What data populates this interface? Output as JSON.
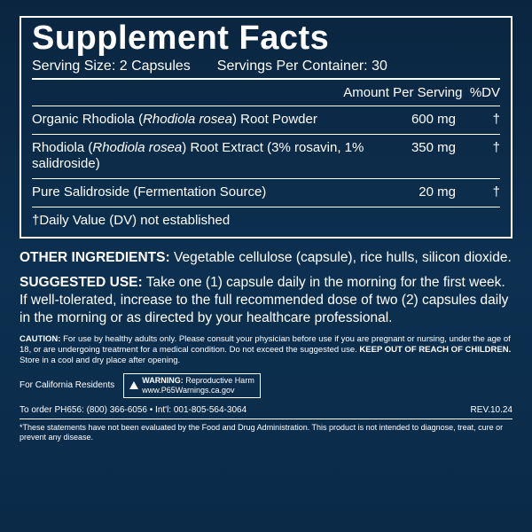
{
  "panel": {
    "title": "Supplement Facts",
    "serving_size_label": "Serving Size:",
    "serving_size_value": "2 Capsules",
    "servings_per_label": "Servings Per Container:",
    "servings_per_value": "30",
    "col_amount": "Amount Per Serving",
    "col_dv": "%DV",
    "rows": [
      {
        "name_html": "Organic Rhodiola (<em>Rhodiola rosea</em>) Root Powder",
        "amount": "600 mg",
        "dv": "†"
      },
      {
        "name_html": "Rhodiola (<em>Rhodiola rosea</em>) Root Extract (3% rosavin, 1% salidroside)",
        "amount": "350 mg",
        "dv": "†"
      },
      {
        "name_html": "Pure Salidroside (Fermentation Source)",
        "amount": "20 mg",
        "dv": "†"
      }
    ],
    "dv_note": "†Daily Value (DV) not established"
  },
  "other_ingredients": {
    "label": "OTHER INGREDIENTS:",
    "text": "Vegetable cellulose (capsule), rice hulls, silicon dioxide."
  },
  "suggested_use": {
    "label": "SUGGESTED USE:",
    "text": "Take one (1) capsule daily in the morning for the first week. If well-tolerated, increase to the full recommended dose of two (2) capsules daily in the morning or as directed by your healthcare professional."
  },
  "caution": {
    "label": "CAUTION:",
    "text1": "For use by healthy adults only. Please consult your physician before use if you are pregnant or nursing, under the age of 18, or are undergoing treatment for a medical condition. Do not exceed the suggested use.",
    "bold": "KEEP OUT OF REACH OF CHILDREN.",
    "text2": "Store in a cool and dry place after opening."
  },
  "california": {
    "label": "For California Residents",
    "warning_label": "WARNING:",
    "warning_text": "Reproductive Harm",
    "warning_url": "www.P65Warnings.ca.gov"
  },
  "order": {
    "text": "To order PH656: (800) 366-6056 • Int'l: 001-805-564-3064",
    "rev": "REV.10.24"
  },
  "disclaimer": "*These statements have not been evaluated by the Food and Drug Administration. This product is not intended to diagnose, treat, cure or prevent any disease."
}
